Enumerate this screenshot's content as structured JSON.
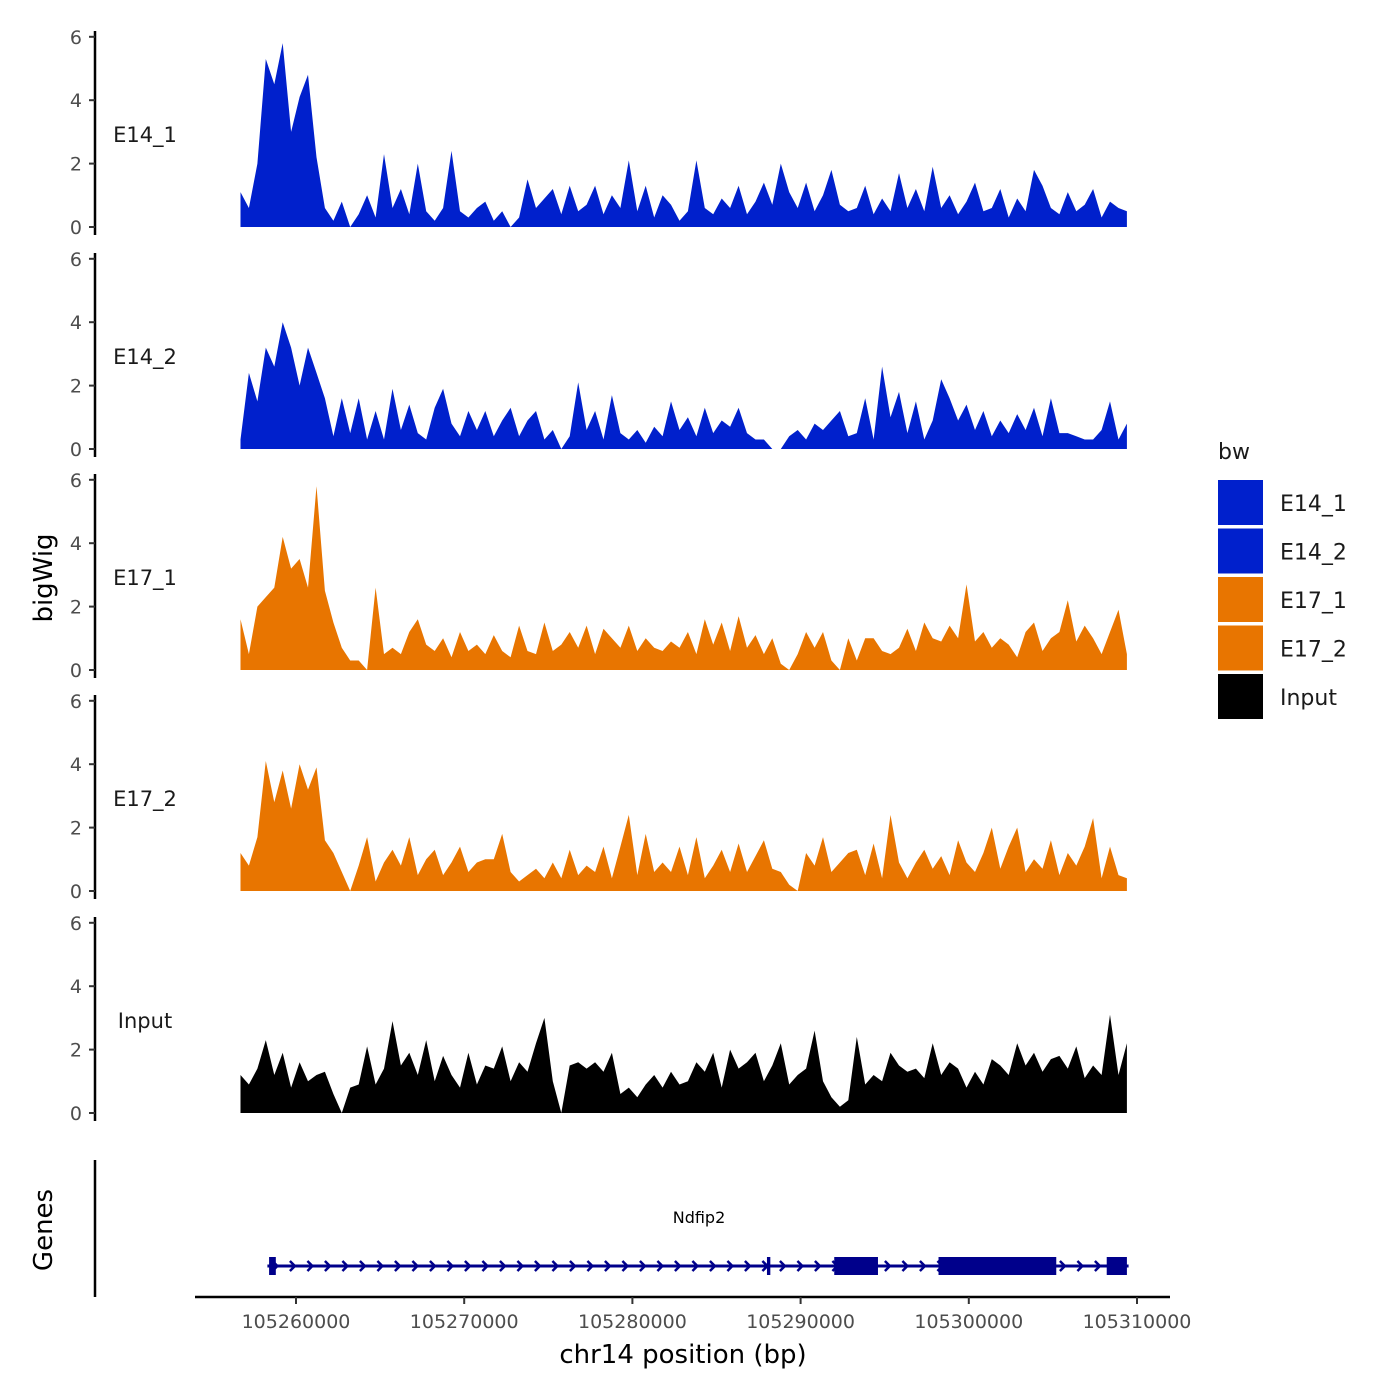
{
  "chart_data": {
    "type": "area",
    "ylabel": "bigWig",
    "gene_track_label": "Genes",
    "xlabel": "chr14 position (bp)",
    "xlim": [
      105254000,
      105312000
    ],
    "xticks": [
      "105260000",
      "105270000",
      "105280000",
      "105290000",
      "105300000",
      "105310000"
    ],
    "xtick_values": [
      105260000,
      105270000,
      105280000,
      105290000,
      105300000,
      105310000
    ],
    "ylim": [
      0,
      6
    ],
    "yticks": [
      "0",
      "2",
      "4",
      "6"
    ],
    "ytick_values": [
      0,
      2,
      4,
      6
    ],
    "data_x_start": 105256700,
    "data_x_end": 105309400,
    "legend": {
      "title": "bw",
      "position": "right",
      "entries": [
        {
          "label": "E14_1",
          "color": "#0020CC"
        },
        {
          "label": "E14_2",
          "color": "#0020CC"
        },
        {
          "label": "E17_1",
          "color": "#E87500"
        },
        {
          "label": "E17_2",
          "color": "#E87500"
        },
        {
          "label": "Input",
          "color": "#000000"
        }
      ]
    },
    "series": [
      {
        "name": "E14_1",
        "color": "#0020CC",
        "values": [
          1.1,
          0.6,
          2.0,
          5.3,
          4.5,
          5.8,
          3.0,
          4.1,
          4.8,
          2.2,
          0.6,
          0.2,
          0.8,
          0.0,
          0.4,
          1.0,
          0.3,
          2.3,
          0.6,
          1.2,
          0.4,
          2.0,
          0.5,
          0.2,
          0.6,
          2.4,
          0.5,
          0.3,
          0.6,
          0.8,
          0.2,
          0.5,
          0.0,
          0.3,
          1.5,
          0.6,
          0.9,
          1.2,
          0.4,
          1.3,
          0.5,
          0.7,
          1.3,
          0.4,
          1.0,
          0.6,
          2.1,
          0.5,
          1.3,
          0.3,
          1.0,
          0.7,
          0.2,
          0.5,
          2.1,
          0.6,
          0.4,
          0.9,
          0.6,
          1.3,
          0.4,
          0.8,
          1.4,
          0.7,
          2.0,
          1.1,
          0.6,
          1.4,
          0.5,
          1.0,
          1.8,
          0.7,
          0.5,
          0.6,
          1.3,
          0.4,
          0.9,
          0.5,
          1.7,
          0.6,
          1.2,
          0.5,
          1.9,
          0.6,
          1.0,
          0.4,
          0.8,
          1.4,
          0.5,
          0.6,
          1.2,
          0.3,
          0.9,
          0.5,
          1.8,
          1.3,
          0.6,
          0.4,
          1.1,
          0.5,
          0.7,
          1.2,
          0.3,
          0.8,
          0.6,
          0.5
        ]
      },
      {
        "name": "E14_2",
        "color": "#0020CC",
        "values": [
          0.3,
          2.4,
          1.5,
          3.2,
          2.6,
          4.0,
          3.2,
          2.0,
          3.2,
          2.4,
          1.6,
          0.4,
          1.6,
          0.5,
          1.6,
          0.3,
          1.2,
          0.3,
          1.9,
          0.6,
          1.4,
          0.5,
          0.3,
          1.3,
          1.9,
          0.8,
          0.4,
          1.2,
          0.6,
          1.2,
          0.4,
          0.9,
          1.3,
          0.4,
          0.9,
          1.2,
          0.3,
          0.6,
          0.0,
          0.4,
          2.1,
          0.6,
          1.2,
          0.3,
          1.7,
          0.5,
          0.3,
          0.6,
          0.2,
          0.7,
          0.4,
          1.5,
          0.6,
          1.0,
          0.4,
          1.3,
          0.5,
          0.9,
          0.7,
          1.3,
          0.5,
          0.3,
          0.3,
          0.0,
          0.0,
          0.4,
          0.6,
          0.3,
          0.8,
          0.6,
          0.9,
          1.2,
          0.4,
          0.5,
          1.6,
          0.3,
          2.6,
          1.0,
          1.8,
          0.5,
          1.5,
          0.3,
          0.9,
          2.2,
          1.6,
          0.9,
          1.4,
          0.6,
          1.2,
          0.4,
          0.9,
          0.5,
          1.1,
          0.6,
          1.3,
          0.4,
          1.6,
          0.5,
          0.5,
          0.4,
          0.3,
          0.3,
          0.6,
          1.5,
          0.3,
          0.8
        ]
      },
      {
        "name": "E17_1",
        "color": "#E87500",
        "values": [
          1.6,
          0.5,
          2.0,
          2.3,
          2.6,
          4.2,
          3.2,
          3.5,
          2.6,
          5.8,
          2.5,
          1.5,
          0.7,
          0.3,
          0.3,
          0.0,
          2.6,
          0.5,
          0.7,
          0.5,
          1.2,
          1.6,
          0.8,
          0.6,
          1.0,
          0.4,
          1.2,
          0.6,
          0.8,
          0.5,
          1.1,
          0.6,
          0.4,
          1.4,
          0.6,
          0.5,
          1.5,
          0.6,
          0.8,
          1.2,
          0.7,
          1.4,
          0.5,
          1.3,
          1.0,
          0.7,
          1.4,
          0.6,
          1.0,
          0.7,
          0.6,
          0.9,
          0.7,
          1.2,
          0.5,
          1.6,
          0.8,
          1.5,
          0.6,
          1.7,
          0.7,
          1.1,
          0.5,
          1.0,
          0.2,
          0.0,
          0.5,
          1.2,
          0.7,
          1.2,
          0.3,
          0.0,
          1.0,
          0.3,
          1.0,
          1.0,
          0.6,
          0.5,
          0.7,
          1.3,
          0.6,
          1.5,
          1.0,
          0.9,
          1.4,
          1.0,
          2.7,
          0.9,
          1.2,
          0.7,
          1.0,
          0.8,
          0.4,
          1.2,
          1.5,
          0.6,
          1.0,
          1.2,
          2.2,
          0.9,
          1.4,
          1.0,
          0.5,
          1.2,
          1.9,
          0.5
        ]
      },
      {
        "name": "E17_2",
        "color": "#E87500",
        "values": [
          1.2,
          0.8,
          1.7,
          4.1,
          2.8,
          3.8,
          2.6,
          4.0,
          3.2,
          3.9,
          1.6,
          1.2,
          0.6,
          0.0,
          0.8,
          1.7,
          0.3,
          0.9,
          1.3,
          0.8,
          1.7,
          0.5,
          1.0,
          1.3,
          0.5,
          0.9,
          1.4,
          0.6,
          0.9,
          1.0,
          1.0,
          1.8,
          0.6,
          0.3,
          0.5,
          0.7,
          0.4,
          0.9,
          0.4,
          1.3,
          0.5,
          0.8,
          0.6,
          1.4,
          0.4,
          1.4,
          2.4,
          0.5,
          1.8,
          0.6,
          0.9,
          0.6,
          1.4,
          0.5,
          1.7,
          0.4,
          0.8,
          1.3,
          0.6,
          1.5,
          0.6,
          1.1,
          1.6,
          0.7,
          0.6,
          0.2,
          0.0,
          1.2,
          0.8,
          1.7,
          0.6,
          0.9,
          1.2,
          1.3,
          0.5,
          1.5,
          0.4,
          2.4,
          0.9,
          0.4,
          0.9,
          1.3,
          0.7,
          1.1,
          0.5,
          1.6,
          0.9,
          0.6,
          1.2,
          2.0,
          0.7,
          1.4,
          2.0,
          0.6,
          1.0,
          0.7,
          1.6,
          0.5,
          1.2,
          0.8,
          1.4,
          2.3,
          0.4,
          1.4,
          0.5,
          0.4
        ]
      },
      {
        "name": "Input",
        "color": "#000000",
        "values": [
          1.2,
          0.9,
          1.4,
          2.3,
          1.2,
          1.9,
          0.8,
          1.6,
          1.0,
          1.2,
          1.3,
          0.6,
          0.0,
          0.8,
          0.9,
          2.1,
          0.9,
          1.4,
          2.9,
          1.5,
          1.9,
          1.2,
          2.3,
          1.0,
          1.8,
          1.2,
          0.8,
          1.9,
          0.9,
          1.5,
          1.4,
          2.1,
          1.0,
          1.6,
          1.3,
          2.2,
          3.0,
          1.0,
          0.0,
          1.5,
          1.6,
          1.4,
          1.6,
          1.3,
          1.9,
          0.6,
          0.8,
          0.5,
          0.9,
          1.2,
          0.8,
          1.3,
          0.9,
          1.0,
          1.6,
          1.3,
          1.9,
          0.8,
          2.0,
          1.4,
          1.6,
          1.9,
          1.0,
          1.5,
          2.2,
          0.9,
          1.2,
          1.4,
          2.6,
          1.0,
          0.5,
          0.2,
          0.4,
          2.4,
          0.9,
          1.2,
          1.0,
          1.9,
          1.5,
          1.3,
          1.4,
          1.1,
          2.2,
          1.2,
          1.6,
          1.4,
          0.8,
          1.3,
          0.9,
          1.7,
          1.5,
          1.2,
          2.2,
          1.5,
          1.9,
          1.3,
          1.7,
          1.8,
          1.4,
          2.1,
          1.1,
          1.5,
          1.2,
          3.1,
          1.2,
          2.2
        ]
      }
    ],
    "gene": {
      "name": "Ndfip2",
      "color": "#00008B",
      "start": 105258300,
      "end": 105309500,
      "strand": "+",
      "exons": [
        [
          105258400,
          105258800
        ],
        [
          105288000,
          105288200
        ],
        [
          105292000,
          105294600
        ],
        [
          105298200,
          105305200
        ],
        [
          105308200,
          105309400
        ]
      ]
    }
  }
}
